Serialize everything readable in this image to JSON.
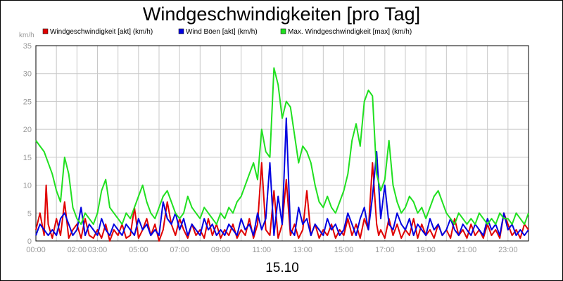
{
  "chart_data": {
    "type": "line",
    "title": "Windgeschwindigkeiten [pro Tag]",
    "ylabel": "km/h",
    "xlabel": "15.10",
    "ylim": [
      0,
      35
    ],
    "xlim": [
      0,
      24
    ],
    "y_ticks": [
      0,
      5,
      10,
      15,
      20,
      25,
      30,
      35
    ],
    "x_ticks": [
      {
        "t": 0,
        "label": "00:00"
      },
      {
        "t": 2,
        "label": "02:00"
      },
      {
        "t": 3,
        "label": "03:00"
      },
      {
        "t": 5,
        "label": "05:00"
      },
      {
        "t": 7,
        "label": "07:00"
      },
      {
        "t": 9,
        "label": "09:00"
      },
      {
        "t": 11,
        "label": "11:00"
      },
      {
        "t": 13,
        "label": "13:00"
      },
      {
        "t": 15,
        "label": "15:00"
      },
      {
        "t": 17,
        "label": "17:00"
      },
      {
        "t": 19,
        "label": "19:00"
      },
      {
        "t": 21,
        "label": "21:00"
      },
      {
        "t": 23,
        "label": "23:00"
      }
    ],
    "grid": true,
    "legend_position": "top",
    "series": [
      {
        "name": "Windgeschwindigkeit [akt] (km/h)",
        "color": "#e00000",
        "t": [
          0,
          0.2,
          0.4,
          0.5,
          0.6,
          0.8,
          1,
          1.2,
          1.4,
          1.6,
          1.8,
          2,
          2.2,
          2.4,
          2.6,
          2.8,
          3,
          3.2,
          3.4,
          3.6,
          3.8,
          4,
          4.2,
          4.4,
          4.6,
          4.8,
          5,
          5.2,
          5.4,
          5.6,
          5.8,
          6,
          6.2,
          6.4,
          6.6,
          6.8,
          7,
          7.2,
          7.4,
          7.6,
          7.8,
          8,
          8.2,
          8.4,
          8.6,
          8.8,
          9,
          9.2,
          9.4,
          9.6,
          9.8,
          10,
          10.2,
          10.4,
          10.6,
          10.8,
          11,
          11.2,
          11.4,
          11.6,
          11.8,
          12,
          12.2,
          12.4,
          12.6,
          12.8,
          13,
          13.2,
          13.4,
          13.6,
          13.8,
          14,
          14.2,
          14.4,
          14.6,
          14.8,
          15,
          15.2,
          15.4,
          15.6,
          15.8,
          16,
          16.2,
          16.4,
          16.6,
          16.7,
          16.8,
          17,
          17.2,
          17.4,
          17.6,
          17.8,
          18,
          18.2,
          18.4,
          18.6,
          18.8,
          19,
          19.2,
          19.4,
          19.6,
          19.8,
          20,
          20.2,
          20.4,
          20.6,
          20.8,
          21,
          21.2,
          21.4,
          21.6,
          21.8,
          22,
          22.2,
          22.4,
          22.6,
          22.8,
          23,
          23.2,
          23.4,
          23.6,
          23.8,
          24
        ],
        "values": [
          2,
          5,
          1,
          10,
          3,
          0.5,
          4,
          1,
          7,
          0.5,
          2,
          3,
          0.5,
          4,
          1,
          0.5,
          2,
          0.5,
          3,
          0,
          2,
          1,
          3,
          0.5,
          1,
          6,
          0.5,
          2,
          4,
          1,
          3,
          0,
          2,
          7,
          3,
          1,
          4,
          2,
          0.5,
          3,
          1,
          2,
          0.5,
          4,
          1,
          3,
          0.5,
          2,
          1,
          3,
          0.5,
          2,
          1,
          4,
          0.5,
          3,
          14,
          2,
          1,
          9,
          0.5,
          3,
          11,
          1,
          3,
          0.5,
          2,
          9,
          1,
          3,
          0.5,
          2,
          1,
          3,
          0.5,
          2,
          1,
          4,
          1,
          3,
          0.5,
          4,
          2,
          14,
          3,
          1,
          2,
          0.5,
          4,
          1,
          3,
          0.5,
          2,
          1,
          4,
          0.5,
          3,
          1,
          2,
          0.5,
          3,
          1,
          2,
          0.5,
          4,
          1,
          2,
          0.5,
          3,
          1,
          2,
          0.5,
          3,
          1,
          2,
          0.5,
          5,
          3,
          1,
          2,
          0.5,
          3,
          2
        ]
      },
      {
        "name": "Wind Böen [akt] (km/h)",
        "color": "#0000e0",
        "t": [
          0,
          0.2,
          0.4,
          0.6,
          0.8,
          1,
          1.2,
          1.4,
          1.6,
          1.8,
          2,
          2.2,
          2.4,
          2.6,
          2.8,
          3,
          3.2,
          3.4,
          3.6,
          3.8,
          4,
          4.2,
          4.4,
          4.6,
          4.8,
          5,
          5.2,
          5.4,
          5.6,
          5.8,
          6,
          6.2,
          6.4,
          6.6,
          6.8,
          7,
          7.2,
          7.4,
          7.6,
          7.8,
          8,
          8.2,
          8.4,
          8.6,
          8.8,
          9,
          9.2,
          9.4,
          9.6,
          9.8,
          10,
          10.2,
          10.4,
          10.6,
          10.8,
          11,
          11.2,
          11.4,
          11.6,
          11.8,
          12,
          12.2,
          12.4,
          12.6,
          12.8,
          13,
          13.2,
          13.4,
          13.6,
          13.8,
          14,
          14.2,
          14.4,
          14.6,
          14.8,
          15,
          15.2,
          15.4,
          15.6,
          15.8,
          16,
          16.2,
          16.4,
          16.6,
          16.8,
          17,
          17.2,
          17.4,
          17.6,
          17.8,
          18,
          18.2,
          18.4,
          18.6,
          18.8,
          19,
          19.2,
          19.4,
          19.6,
          19.8,
          20,
          20.2,
          20.4,
          20.6,
          20.8,
          21,
          21.2,
          21.4,
          21.6,
          21.8,
          22,
          22.2,
          22.4,
          22.6,
          22.8,
          23,
          23.2,
          23.4,
          23.6,
          23.8,
          24
        ],
        "values": [
          1,
          3,
          2,
          1,
          2,
          1,
          4,
          5,
          3,
          1,
          2,
          6,
          1,
          3,
          2,
          1,
          4,
          2,
          1,
          3,
          2,
          1,
          3,
          2,
          1,
          4,
          2,
          3,
          1,
          2,
          1,
          7,
          4,
          3,
          5,
          2,
          4,
          1,
          3,
          2,
          1,
          4,
          2,
          3,
          1,
          2,
          1,
          3,
          2,
          1,
          4,
          2,
          3,
          1,
          5,
          2,
          4,
          14,
          1,
          8,
          3,
          22,
          2,
          1,
          6,
          3,
          4,
          1,
          3,
          2,
          1,
          4,
          2,
          3,
          1,
          2,
          5,
          3,
          1,
          4,
          6,
          2,
          8,
          16,
          4,
          10,
          3,
          2,
          5,
          3,
          2,
          4,
          1,
          3,
          2,
          1,
          4,
          2,
          3,
          1,
          2,
          4,
          2,
          1,
          3,
          2,
          1,
          3,
          2,
          1,
          4,
          2,
          3,
          1,
          5,
          2,
          3,
          1,
          2,
          1,
          2
        ]
      },
      {
        "name": "Max. Windgeschwindigkeit [max] (km/h)",
        "color": "#20e020",
        "t": [
          0,
          0.2,
          0.4,
          0.6,
          0.8,
          1,
          1.2,
          1.4,
          1.6,
          1.8,
          2,
          2.2,
          2.4,
          2.6,
          2.8,
          3,
          3.2,
          3.4,
          3.6,
          3.8,
          4,
          4.2,
          4.4,
          4.6,
          4.8,
          5,
          5.2,
          5.4,
          5.6,
          5.8,
          6,
          6.2,
          6.4,
          6.6,
          6.8,
          7,
          7.2,
          7.4,
          7.6,
          7.8,
          8,
          8.2,
          8.4,
          8.6,
          8.8,
          9,
          9.2,
          9.4,
          9.6,
          9.8,
          10,
          10.2,
          10.4,
          10.6,
          10.8,
          11,
          11.2,
          11.4,
          11.6,
          11.8,
          12,
          12.2,
          12.4,
          12.6,
          12.8,
          13,
          13.2,
          13.4,
          13.6,
          13.8,
          14,
          14.2,
          14.4,
          14.6,
          14.8,
          15,
          15.2,
          15.4,
          15.6,
          15.8,
          16,
          16.2,
          16.4,
          16.6,
          16.8,
          17,
          17.2,
          17.4,
          17.6,
          17.8,
          18,
          18.2,
          18.4,
          18.6,
          18.8,
          19,
          19.2,
          19.4,
          19.6,
          19.8,
          20,
          20.2,
          20.4,
          20.6,
          20.8,
          21,
          21.2,
          21.4,
          21.6,
          21.8,
          22,
          22.2,
          22.4,
          22.6,
          22.8,
          23,
          23.2,
          23.4,
          23.6,
          23.8,
          24
        ],
        "values": [
          18,
          17,
          16,
          14,
          12,
          9,
          7,
          15,
          12,
          6,
          4,
          3,
          5,
          4,
          3,
          5,
          9,
          11,
          6,
          5,
          4,
          3,
          5,
          4,
          6,
          8,
          10,
          7,
          5,
          4,
          6,
          8,
          9,
          7,
          5,
          4,
          5,
          8,
          6,
          5,
          4,
          6,
          5,
          4,
          3,
          5,
          4,
          6,
          5,
          7,
          8,
          10,
          12,
          14,
          11,
          20,
          16,
          15,
          31,
          28,
          22,
          25,
          24,
          19,
          14,
          17,
          16,
          14,
          10,
          7,
          6,
          8,
          6,
          5,
          7,
          9,
          12,
          18,
          21,
          17,
          25,
          27,
          26,
          12,
          9,
          11,
          18,
          10,
          7,
          5,
          6,
          8,
          7,
          5,
          6,
          4,
          6,
          8,
          9,
          7,
          5,
          4,
          3,
          5,
          4,
          3,
          4,
          3,
          5,
          4,
          3,
          4,
          3,
          5,
          4,
          4,
          3,
          5,
          4,
          3,
          5
        ]
      }
    ]
  }
}
